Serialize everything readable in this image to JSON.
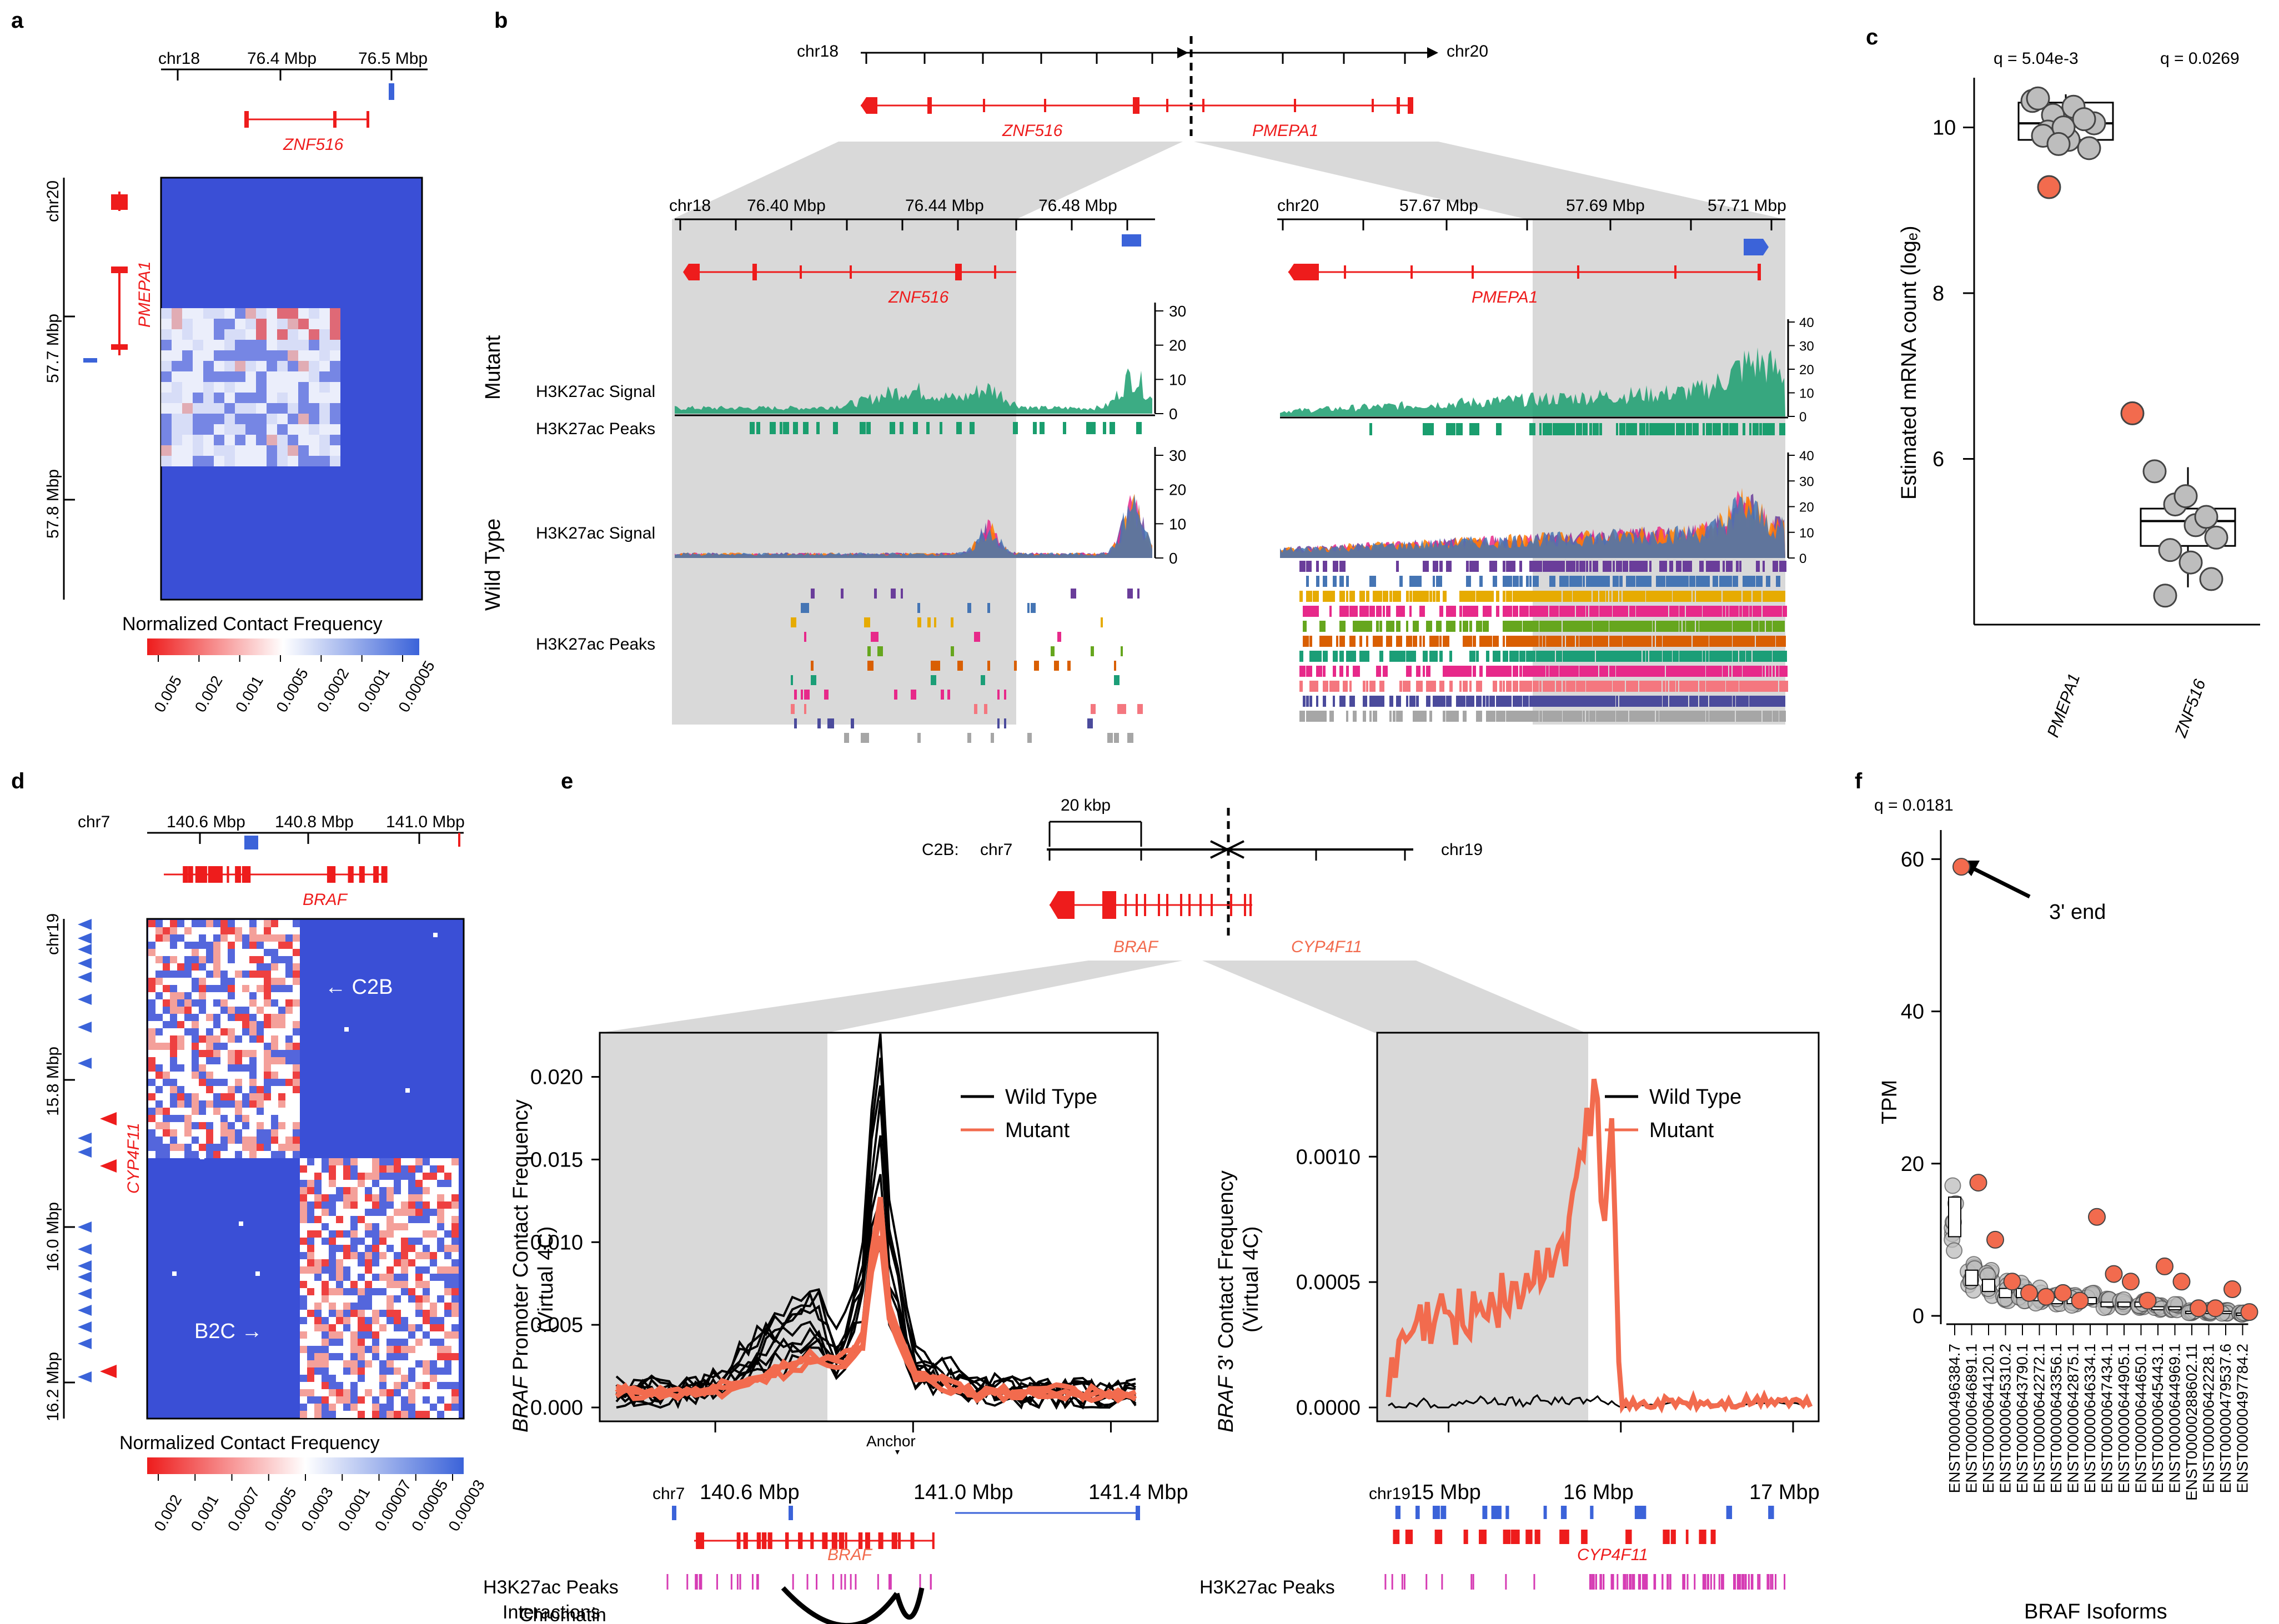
{
  "panels": {
    "a": {
      "label": "a",
      "top_axis": {
        "chrom": "chr18",
        "ticks": [
          "76.4 Mbp",
          "76.5 Mbp"
        ]
      },
      "gene_label": "ZNF516",
      "left_axis": {
        "chrom": "chr20",
        "ticks": [
          "57.7 Mbp",
          "57.8 Mbp"
        ]
      },
      "left_gene_label": "PMEPA1",
      "colorbar_title": "Normalized Contact Frequency",
      "colorbar_ticks": [
        "0.005",
        "0.002",
        "0.001",
        "0.0005",
        "0.0002",
        "0.0001",
        "0.00005"
      ]
    },
    "b": {
      "label": "b",
      "top_axis": {
        "left_chrom": "chr18",
        "right_chrom": "chr20"
      },
      "gene_labels": [
        "ZNF516",
        "PMEPA1"
      ],
      "left_track": {
        "chrom": "chr18",
        "ticks": [
          "76.40 Mbp",
          "76.44 Mbp",
          "76.48 Mbp"
        ],
        "gene_label": "ZNF516"
      },
      "right_track": {
        "chrom": "chr20",
        "ticks": [
          "57.67 Mbp",
          "57.69 Mbp",
          "57.71 Mbp"
        ],
        "gene_label": "PMEPA1"
      },
      "row_group_mutant": "Mutant",
      "row_group_wildtype": "Wild Type",
      "signal_label": "H3K27ac Signal",
      "peaks_label": "H3K27ac Peaks",
      "left_signal_ticks": [
        "30",
        "20",
        "10",
        "0"
      ],
      "right_signal_ticks": [
        "40",
        "30",
        "20",
        "10",
        "0"
      ]
    },
    "c": {
      "label": "c",
      "q_labels": [
        "q = 5.04e-3",
        "q = 0.0269"
      ],
      "ylabel": "Estimated mRNA count (logₑ)",
      "yticks": [
        "10",
        "8",
        "6"
      ],
      "categories": [
        "PMEPA1",
        "ZNF516"
      ]
    },
    "d": {
      "label": "d",
      "top_axis": {
        "chrom": "chr7",
        "ticks": [
          "140.6 Mbp",
          "140.8 Mbp",
          "141.0 Mbp"
        ]
      },
      "gene_label": "BRAF",
      "left_axis": {
        "chrom": "chr19",
        "ticks": [
          "15.8 Mbp",
          "16.0 Mbp",
          "16.2 Mbp"
        ]
      },
      "left_gene_label": "CYP4F11",
      "annotations": [
        "← C2B",
        "B2C →"
      ],
      "colorbar_title": "Normalized Contact Frequency",
      "colorbar_ticks": [
        "0.002",
        "0.001",
        "0.0007",
        "0.0005",
        "0.0003",
        "0.0001",
        "0.00007",
        "0.00005",
        "0.00003"
      ]
    },
    "e": {
      "label": "e",
      "scale_bar": "20 kbp",
      "fusion_label": "C2B:",
      "left_chrom": "chr7",
      "right_chrom": "chr19",
      "gene_labels": [
        "BRAF",
        "CYP4F11"
      ],
      "left_plot": {
        "ylabel_gene": "BRAF",
        "ylabel_rest": " Promoter Contact Frequency",
        "ylabel_line2": "(Virtual 4C)",
        "yticks": [
          "0.020",
          "0.015",
          "0.010",
          "0.005",
          "0.000"
        ],
        "anchor_label": "Anchor",
        "legend": [
          "Wild Type",
          "Mutant"
        ],
        "x_chrom": "chr7",
        "xticks": [
          "140.6 Mbp",
          "141.0 Mbp",
          "141.4 Mbp"
        ],
        "gene_label": "BRAF",
        "peaks_label": "H3K27ac Peaks",
        "interactions_label": [
          "Chromatin",
          "Interactions"
        ]
      },
      "right_plot": {
        "ylabel_gene": "BRAF",
        "ylabel_rest": " 3' Contact Frequency",
        "ylabel_line2": "(Virtual 4C)",
        "yticks": [
          "0.0010",
          "0.0005",
          "0.0000"
        ],
        "legend": [
          "Wild Type",
          "Mutant"
        ],
        "x_chrom": "chr19",
        "xticks": [
          "15 Mbp",
          "16 Mbp",
          "17 Mbp"
        ],
        "gene_label": "CYP4F11",
        "peaks_label": "H3K27ac Peaks"
      }
    },
    "f": {
      "label": "f",
      "q_label": "q = 0.0181",
      "annotation": "3' end",
      "ylabel": "TPM",
      "yticks": [
        "60",
        "40",
        "20",
        "0"
      ],
      "xlabel": "BRAF Isoforms",
      "isoforms": [
        "ENST00000496384.7",
        "ENST00000646891.1",
        "ENST00000644120.1",
        "ENST00000645310.2",
        "ENST00000643790.1",
        "ENST00000642272.1",
        "ENST00000643356.1",
        "ENST00000642875.1",
        "ENST00000646334.1",
        "ENST00000647434.1",
        "ENST00000644905.1",
        "ENST00000644650.1",
        "ENST00000645443.1",
        "ENST00000644969.1",
        "ENST00000288602.11",
        "ENST00000642228.1",
        "ENST00000479537.6",
        "ENST00000497784.2"
      ]
    }
  },
  "colors": {
    "red_gene": "#ee1c1c",
    "blue_gene": "#3b63d9",
    "heat_blue": "#3a4fd6",
    "signal_green": "#1a9e6e",
    "mutant_line": "#f26b4e",
    "grey_box": "#d9d9d9"
  },
  "chart_data": [
    {
      "type": "scatter",
      "panel": "c",
      "categories": [
        "PMEPA1",
        "ZNF516"
      ],
      "ylabel": "Estimated mRNA count (logₑ)",
      "ylim": [
        4,
        10.6
      ],
      "series": [
        {
          "name": "",
          "group": "wild type",
          "values": [
            [
              10.32,
              10.15,
              10.25,
              10.05,
              9.95,
              9.85,
              9.75,
              9.9,
              10.0,
              10.1,
              10.35,
              9.8
            ],
            [
              5.85,
              5.45,
              5.2,
              5.05,
              4.9,
              4.75,
              4.55,
              4.35,
              5.55,
              5.3
            ]
          ]
        },
        {
          "name": "",
          "group": "mutant",
          "values": [
            [
              9.28
            ],
            [
              6.55
            ]
          ]
        }
      ],
      "annotations": [
        "q = 5.04e-3",
        "q = 0.0269"
      ]
    },
    {
      "type": "scatter",
      "panel": "f",
      "categories": [
        "ENST00000496384.7",
        "ENST00000646891.1",
        "ENST00000644120.1",
        "ENST00000645310.2",
        "ENST00000643790.1",
        "ENST00000642272.1",
        "ENST00000643356.1",
        "ENST00000642875.1",
        "ENST00000646334.1",
        "ENST00000647434.1",
        "ENST00000644905.1",
        "ENST00000644650.1",
        "ENST00000645443.1",
        "ENST00000644969.1",
        "ENST00000288602.11",
        "ENST00000642228.1",
        "ENST00000479537.6",
        "ENST00000497784.2"
      ],
      "ylabel": "TPM",
      "xlabel": "BRAF Isoforms",
      "ylim": [
        0,
        62
      ],
      "mutant_values": [
        59,
        17.5,
        10,
        4.5,
        3,
        2.5,
        3,
        2,
        13,
        5.5,
        4.5,
        2,
        6.5,
        4.5,
        1,
        1,
        3.5,
        0.5
      ],
      "wildtype_median": [
        13,
        5,
        4,
        3,
        3,
        2.5,
        2,
        2,
        2,
        1.5,
        1.5,
        1.5,
        1,
        1,
        0.5,
        0.5,
        0.5,
        0.3
      ],
      "annotations": [
        "q = 0.0181",
        "3' end"
      ]
    },
    {
      "type": "line",
      "panel": "e-left",
      "x": [
        140.4,
        140.5,
        140.6,
        140.7,
        140.8,
        140.85,
        140.9,
        140.93,
        140.95,
        141.0,
        141.1,
        141.2,
        141.3,
        141.45
      ],
      "series": [
        {
          "name": "Wild Type",
          "values": [
            0.001,
            0.001,
            0.0015,
            0.004,
            0.006,
            0.003,
            0.008,
            0.02,
            0.01,
            0.003,
            0.0015,
            0.001,
            0.001,
            0.0008
          ]
        },
        {
          "name": "Mutant",
          "values": [
            0.001,
            0.0008,
            0.001,
            0.002,
            0.003,
            0.0025,
            0.004,
            0.013,
            0.006,
            0.002,
            0.001,
            0.0008,
            0.0009,
            0.0007
          ]
        }
      ],
      "ylim": [
        0,
        0.022
      ],
      "xticks": [
        "140.6 Mbp",
        "141.0 Mbp",
        "141.4 Mbp"
      ]
    },
    {
      "type": "line",
      "panel": "e-right",
      "x": [
        14.65,
        14.8,
        15.0,
        15.2,
        15.4,
        15.5,
        15.6,
        15.7,
        15.75,
        15.8,
        15.85,
        15.9,
        15.95,
        16.0,
        16.3,
        16.6,
        16.9,
        17.1
      ],
      "series": [
        {
          "name": "Wild Type",
          "values": [
            0.0,
            2e-05,
            1e-05,
            3e-05,
            2e-05,
            3e-05,
            2e-05,
            3e-05,
            2e-05,
            4e-05,
            3e-05,
            2e-05,
            3e-05,
            0.0,
            2e-05,
            1e-05,
            2e-05,
            1e-05
          ]
        },
        {
          "name": "Mutant",
          "values": [
            0.0001,
            0.0003,
            0.00035,
            0.0004,
            0.00045,
            0.0005,
            0.0006,
            0.0007,
            0.0009,
            0.0011,
            0.0013,
            0.0008,
            0.0013,
            0.0,
            2e-05,
            1e-05,
            3e-05,
            1e-05
          ]
        }
      ],
      "ylim": [
        0,
        0.00145
      ],
      "xticks": [
        "15 Mbp",
        "16 Mbp",
        "17 Mbp"
      ]
    }
  ]
}
